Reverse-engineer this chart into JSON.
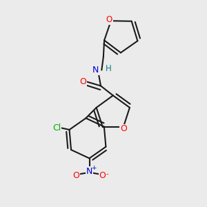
{
  "bg_color": "#ebebeb",
  "bond_color": "#1a1a1a",
  "bond_width": 1.5,
  "atom_colors": {
    "O": "#ff0000",
    "N_amide": "#0000cc",
    "N_nitro": "#0000cc",
    "H": "#008080",
    "Cl": "#00aa00",
    "C": "#1a1a1a"
  },
  "canvas_xlim": [
    -0.45,
    0.45
  ],
  "canvas_ylim": [
    -0.08,
    1.08
  ]
}
